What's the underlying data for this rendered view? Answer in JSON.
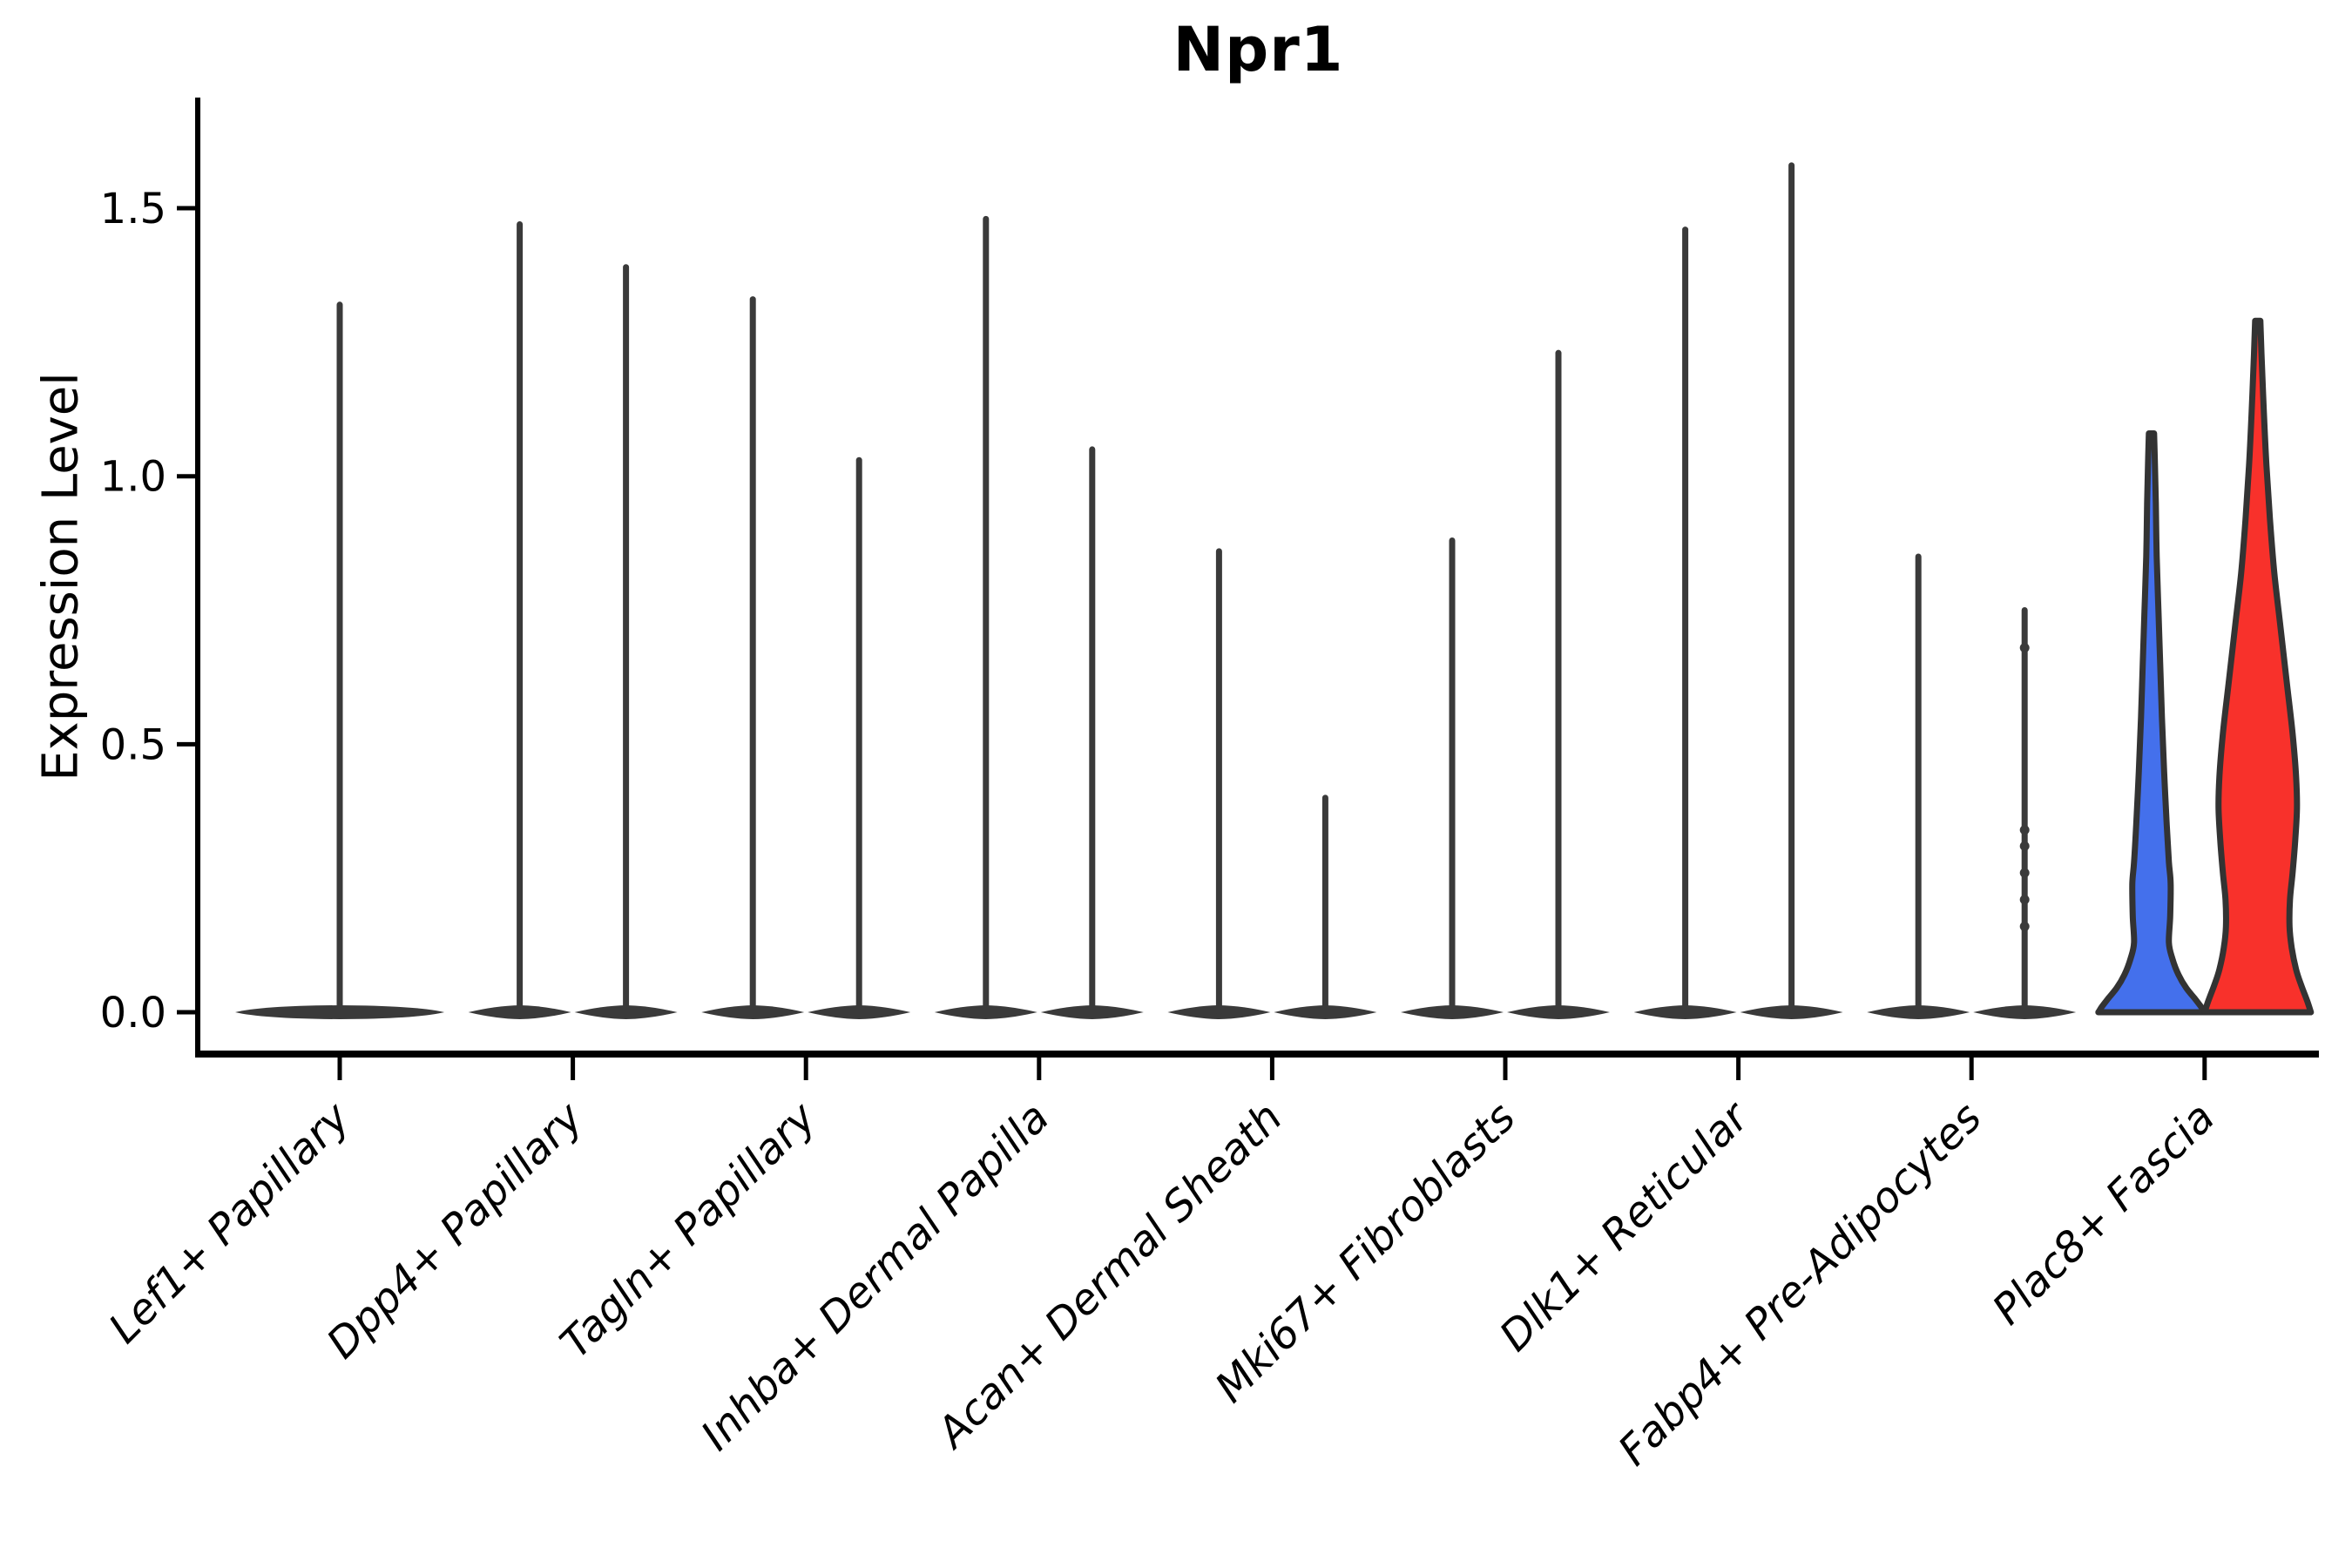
{
  "chart_data": {
    "type": "violin",
    "title": "Npr1",
    "ylabel": "Expression Level",
    "legend_position": "none",
    "grid": false,
    "background_color": "#ffffff",
    "axis_color": "#000000",
    "spike_color": "#3A3A3A",
    "violin_outline_color": "#333333",
    "group_colors": {
      "group1_blue": "#4470EC",
      "group2_red": "#F8312B"
    },
    "ylim": [
      -0.08,
      1.7
    ],
    "yticks": [
      {
        "label": "0.0",
        "value": 0.0
      },
      {
        "label": "0.5",
        "value": 0.5
      },
      {
        "label": "1.0",
        "value": 1.0
      },
      {
        "label": "1.5",
        "value": 1.5
      }
    ],
    "categories": [
      {
        "label": "Lef1+ Papillary",
        "violins": [
          {
            "pos": "center",
            "max": 1.32
          }
        ]
      },
      {
        "label": "Dpp4+ Papillary",
        "violins": [
          {
            "pos": "left",
            "max": 1.47
          },
          {
            "pos": "right",
            "max": 1.39
          }
        ]
      },
      {
        "label": "Tagln+ Papillary",
        "violins": [
          {
            "pos": "left",
            "max": 1.33
          },
          {
            "pos": "right",
            "max": 1.03
          }
        ]
      },
      {
        "label": "Inhba+ Dermal Papilla",
        "violins": [
          {
            "pos": "left",
            "max": 1.48
          },
          {
            "pos": "right",
            "max": 1.05
          }
        ]
      },
      {
        "label": "Acan+ Dermal Sheath",
        "violins": [
          {
            "pos": "left",
            "max": 0.86
          },
          {
            "pos": "right",
            "max": 0.4
          }
        ]
      },
      {
        "label": "Mki67+ Fibroblasts",
        "violins": [
          {
            "pos": "left",
            "max": 0.88
          },
          {
            "pos": "right",
            "max": 1.23
          }
        ]
      },
      {
        "label": "Dlk1+ Reticular",
        "violins": [
          {
            "pos": "left",
            "max": 1.46
          },
          {
            "pos": "right",
            "max": 1.58
          }
        ]
      },
      {
        "label": "Fabp4+ Pre-Adipocytes",
        "violins": [
          {
            "pos": "left",
            "max": 0.85
          },
          {
            "pos": "right",
            "max": 0.75,
            "beads": [
              0.68,
              0.34,
              0.31,
              0.26,
              0.21,
              0.16
            ]
          }
        ]
      },
      {
        "label": "Plac8+ Fascia",
        "violins": [
          {
            "pos": "left",
            "max": 1.08,
            "fill": "#4470EC",
            "profile": [
              [
                1.08,
                3
              ],
              [
                1.02,
                4
              ],
              [
                0.95,
                5
              ],
              [
                0.85,
                6
              ],
              [
                0.75,
                8
              ],
              [
                0.65,
                10
              ],
              [
                0.55,
                12
              ],
              [
                0.45,
                14.5
              ],
              [
                0.35,
                17.5
              ],
              [
                0.28,
                20
              ],
              [
                0.24,
                22
              ],
              [
                0.18,
                21.5
              ],
              [
                0.13,
                20
              ],
              [
                0.1,
                24
              ],
              [
                0.07,
                31
              ],
              [
                0.045,
                40
              ],
              [
                0.025,
                50
              ],
              [
                0.01,
                57
              ],
              [
                0,
                61
              ]
            ]
          },
          {
            "pos": "right",
            "max": 1.29,
            "fill": "#F8312B",
            "profile": [
              [
                1.29,
                3
              ],
              [
                1.22,
                4.5
              ],
              [
                1.12,
                7
              ],
              [
                1.02,
                10
              ],
              [
                0.92,
                14
              ],
              [
                0.82,
                19
              ],
              [
                0.72,
                26
              ],
              [
                0.62,
                33
              ],
              [
                0.52,
                40
              ],
              [
                0.44,
                44
              ],
              [
                0.38,
                45
              ],
              [
                0.32,
                43
              ],
              [
                0.26,
                40
              ],
              [
                0.21,
                37
              ],
              [
                0.16,
                36.5
              ],
              [
                0.12,
                39
              ],
              [
                0.08,
                44
              ],
              [
                0.05,
                50
              ],
              [
                0.02,
                57
              ],
              [
                0,
                61
              ]
            ]
          }
        ]
      }
    ]
  }
}
